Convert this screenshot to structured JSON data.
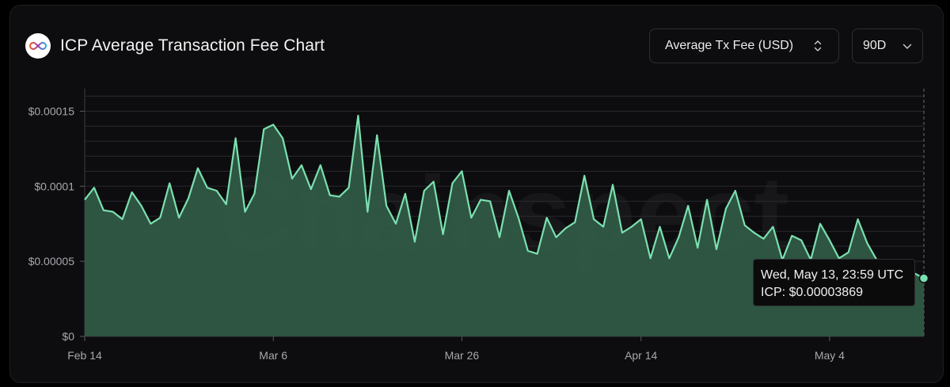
{
  "header": {
    "title": "ICP Average Transaction Fee Chart",
    "logo_icon": "icp-infinity-logo-icon",
    "metric_select": {
      "value": "Average Tx Fee (USD)",
      "icon": "chevron-up-down-icon"
    },
    "range_select": {
      "value": "90D",
      "icon": "chevron-down-icon"
    }
  },
  "watermark": "Chainspect",
  "colors": {
    "line": "#7be0b0",
    "fill": "#2f5a45",
    "grid": "#2a2a2e",
    "axis_text": "#a7a7ad",
    "background": "#0d0d0f"
  },
  "tooltip": {
    "date": "Wed, May 13, 23:59 UTC",
    "value": "ICP: $0.00003869"
  },
  "chart_data": {
    "type": "area",
    "ylim": [
      0,
      0.000165
    ],
    "y_ticks": [
      {
        "value": 0,
        "label": "$0"
      },
      {
        "value": 5e-05,
        "label": "$0.00005"
      },
      {
        "value": 0.0001,
        "label": "$0.0001"
      },
      {
        "value": 0.00015,
        "label": "$0.00015"
      }
    ],
    "x_ticks": [
      {
        "index": 0,
        "label": "Feb 14"
      },
      {
        "index": 20,
        "label": "Mar 6"
      },
      {
        "index": 40,
        "label": "Mar 26"
      },
      {
        "index": 59,
        "label": "Apr 14"
      },
      {
        "index": 79,
        "label": "May 4"
      }
    ],
    "x_start": "2026-02-13",
    "x_end": "2026-05-13",
    "grid": true,
    "series": [
      {
        "name": "ICP",
        "values": [
          9.1e-05,
          9.9e-05,
          8.4e-05,
          8.3e-05,
          7.8e-05,
          9.6e-05,
          8.7e-05,
          7.5e-05,
          7.9e-05,
          0.000102,
          7.9e-05,
          9.2e-05,
          0.000112,
          9.9e-05,
          9.7e-05,
          8.8e-05,
          0.000132,
          8.3e-05,
          9.5e-05,
          0.000138,
          0.000141,
          0.000132,
          0.000105,
          0.000114,
          9.8e-05,
          0.000114,
          9.4e-05,
          9.3e-05,
          9.9e-05,
          0.000147,
          8.3e-05,
          0.000134,
          8.7e-05,
          7.5e-05,
          9.5e-05,
          6.3e-05,
          9.7e-05,
          0.000103,
          6.8e-05,
          0.000102,
          0.00011,
          7.9e-05,
          9.1e-05,
          9e-05,
          6.6e-05,
          9.7e-05,
          7.9e-05,
          5.7e-05,
          5.5e-05,
          7.9e-05,
          6.6e-05,
          7.2e-05,
          7.6e-05,
          0.000107,
          7.8e-05,
          7.3e-05,
          0.000101,
          6.9e-05,
          7.3e-05,
          7.8e-05,
          5.2e-05,
          7.3e-05,
          5.2e-05,
          6.6e-05,
          8.7e-05,
          5.9e-05,
          9.1e-05,
          5.8e-05,
          8.5e-05,
          9.7e-05,
          7.4e-05,
          6.9e-05,
          6.5e-05,
          7.3e-05,
          5.1e-05,
          6.7e-05,
          6.4e-05,
          5.1e-05,
          7.5e-05,
          6.4e-05,
          5.2e-05,
          5.6e-05,
          7.8e-05,
          6.2e-05,
          5.1e-05,
          4.5e-05,
          4.3e-05,
          4.1e-05,
          4.2e-05,
          3.869e-05
        ]
      }
    ]
  }
}
